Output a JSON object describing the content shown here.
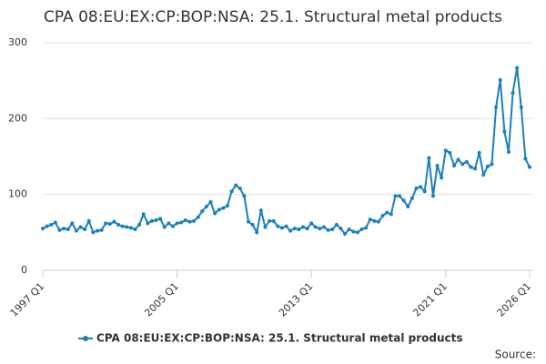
{
  "chart_data": {
    "type": "line",
    "title": "CPA 08:EU:EX:CP:BOP:NSA: 25.1. Structural metal products",
    "categories": [
      "1997 Q1",
      null,
      null,
      null,
      null,
      null,
      null,
      null,
      null,
      null,
      null,
      null,
      null,
      null,
      null,
      null,
      null,
      null,
      null,
      null,
      null,
      null,
      null,
      null,
      null,
      null,
      null,
      null,
      null,
      null,
      null,
      null,
      "2005 Q1",
      null,
      null,
      null,
      null,
      null,
      null,
      null,
      null,
      null,
      null,
      null,
      null,
      null,
      null,
      null,
      null,
      null,
      null,
      null,
      null,
      null,
      null,
      null,
      null,
      null,
      null,
      null,
      null,
      null,
      null,
      null,
      "2013 Q1",
      null,
      null,
      null,
      null,
      null,
      null,
      null,
      null,
      null,
      null,
      null,
      null,
      null,
      null,
      null,
      null,
      null,
      null,
      null,
      null,
      null,
      null,
      null,
      null,
      null,
      null,
      null,
      null,
      null,
      null,
      null,
      "2021 Q1",
      null,
      null,
      null,
      null,
      null,
      null,
      null,
      null,
      null,
      null,
      null,
      null,
      null,
      null,
      null,
      null,
      null,
      null,
      null,
      "2026 Q1"
    ],
    "series": [
      {
        "name": "CPA 08:EU:EX:CP:BOP:NSA: 25.1. Structural metal products",
        "color": "#1a7fbf",
        "values": [
          55,
          58,
          60,
          63,
          53,
          55,
          54,
          62,
          52,
          57,
          54,
          65,
          50,
          52,
          53,
          62,
          61,
          64,
          60,
          58,
          57,
          56,
          54,
          60,
          74,
          62,
          65,
          66,
          68,
          57,
          62,
          58,
          62,
          63,
          66,
          64,
          65,
          70,
          78,
          84,
          90,
          75,
          80,
          82,
          85,
          104,
          112,
          108,
          98,
          64,
          60,
          50,
          79,
          57,
          65,
          65,
          58,
          56,
          58,
          52,
          55,
          54,
          57,
          55,
          62,
          57,
          55,
          57,
          53,
          54,
          60,
          55,
          48,
          54,
          51,
          50,
          54,
          56,
          67,
          65,
          64,
          72,
          76,
          74,
          98,
          98,
          92,
          84,
          95,
          108,
          110,
          104,
          148,
          98,
          138,
          122,
          158,
          155,
          138,
          146,
          140,
          143,
          136,
          134,
          155,
          126,
          137,
          140,
          215,
          251,
          183,
          156,
          234,
          267,
          215,
          147,
          136
        ]
      }
    ],
    "ylim": [
      0,
      300
    ],
    "yticks": [
      0,
      100,
      200,
      300
    ],
    "grid": true,
    "source": "Source:"
  }
}
